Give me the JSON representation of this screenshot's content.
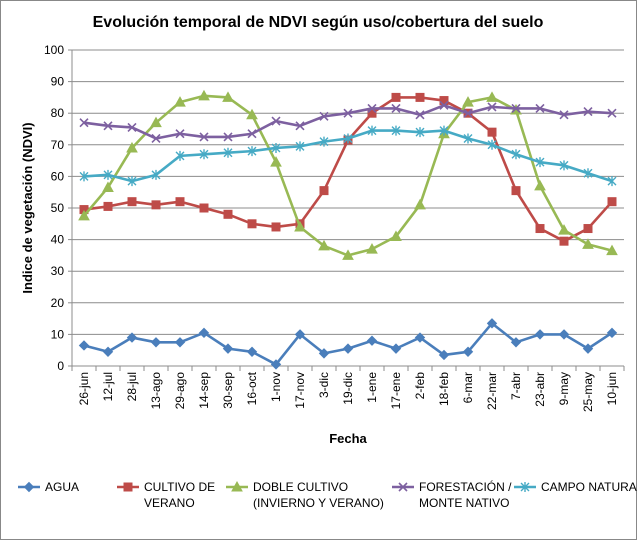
{
  "chart_data": {
    "type": "line",
    "title": "Evolución temporal de NDVI según uso/cobertura del suelo",
    "xlabel": "Fecha",
    "ylabel": "Indice de vegetación (NDVI)",
    "ylim": [
      0,
      100
    ],
    "yticks": [
      0,
      10,
      20,
      30,
      40,
      50,
      60,
      70,
      80,
      90,
      100
    ],
    "grid": true,
    "legend_position": "bottom",
    "categories": [
      "26-jun",
      "12-jul",
      "28-jul",
      "13-ago",
      "29-ago",
      "14-sep",
      "30-sep",
      "16-oct",
      "1-nov",
      "17-nov",
      "3-dic",
      "19-dic",
      "1-ene",
      "17-ene",
      "2-feb",
      "18-feb",
      "6-mar",
      "22-mar",
      "7-abr",
      "23-abr",
      "9-may",
      "25-may",
      "10-jun"
    ],
    "series": [
      {
        "name": "AGUA",
        "legend_lines": [
          "AGUA"
        ],
        "color": "#4a7ebb",
        "marker": "diamond",
        "values": [
          6.5,
          4.5,
          9,
          7.5,
          7.5,
          10.5,
          5.5,
          4.5,
          0.5,
          10,
          4,
          5.5,
          8,
          5.5,
          9,
          3.5,
          4.5,
          13.5,
          7.5,
          10,
          10,
          5.5,
          10.5
        ]
      },
      {
        "name": "CULTIVO DE VERANO",
        "legend_lines": [
          "CULTIVO DE",
          "VERANO"
        ],
        "color": "#be4b48",
        "marker": "square",
        "values": [
          49.5,
          50.5,
          52,
          51,
          52,
          50,
          48,
          45,
          44,
          45,
          55.5,
          71.5,
          80,
          85,
          85,
          84,
          80,
          74,
          55.5,
          43.5,
          39.5,
          43.5,
          52
        ]
      },
      {
        "name": "DOBLE CULTIVO (INVIERNO Y VERANO)",
        "legend_lines": [
          "DOBLE CULTIVO",
          "(INVIERNO Y VERANO)"
        ],
        "color": "#98b954",
        "marker": "triangle",
        "values": [
          47.5,
          56.5,
          69,
          77,
          83.5,
          85.5,
          85,
          79.5,
          64.5,
          44,
          38,
          35,
          37,
          41,
          51,
          73.5,
          83.5,
          85,
          81,
          57,
          43,
          38.5,
          36.5
        ]
      },
      {
        "name": "FORESTACIÓN / MONTE NATIVO",
        "legend_lines": [
          "FORESTACIÓN /",
          "MONTE NATIVO"
        ],
        "color": "#7d60a0",
        "marker": "x",
        "values": [
          77,
          76,
          75.5,
          72,
          73.5,
          72.5,
          72.5,
          73.5,
          77.5,
          76,
          79,
          80,
          81.5,
          81.5,
          79.5,
          82.5,
          80,
          82,
          81.5,
          81.5,
          79.5,
          80.5,
          80
        ]
      },
      {
        "name": "CAMPO NATURAL",
        "legend_lines": [
          "CAMPO NATURAL"
        ],
        "color": "#46aac5",
        "marker": "star",
        "values": [
          60,
          60.5,
          58.5,
          60.5,
          66.5,
          67,
          67.5,
          68,
          69,
          69.5,
          71,
          72,
          74.5,
          74.5,
          74,
          74.5,
          72,
          70,
          67,
          64.5,
          63.5,
          61,
          58.5
        ]
      }
    ]
  }
}
